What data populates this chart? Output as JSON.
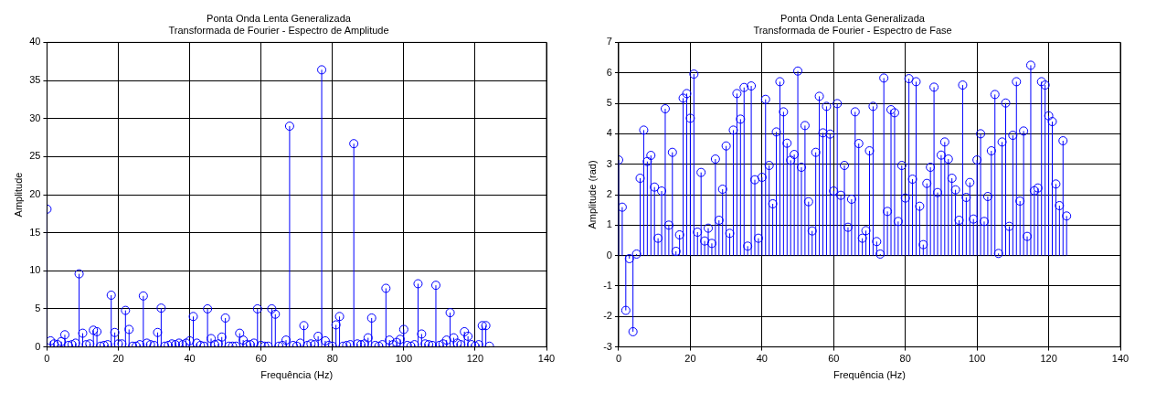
{
  "chart_data": [
    {
      "type": "lollipop",
      "title": "Ponta Onda Lenta Generalizada",
      "subtitle": "Transformada de Fourier - Espectro de Amplitude",
      "xlabel": "Frequência (Hz)",
      "ylabel": "Amplitude",
      "color": "#0000ff",
      "marker": "circle",
      "grid": true,
      "xlim": [
        0,
        140
      ],
      "xticks": [
        0,
        20,
        40,
        60,
        80,
        100,
        120,
        140
      ],
      "ylim": [
        0,
        40
      ],
      "yticks": [
        0,
        5,
        10,
        15,
        20,
        25,
        30,
        35,
        40
      ],
      "x": [
        0,
        1,
        2,
        3,
        4,
        5,
        6,
        7,
        8,
        9,
        10,
        11,
        12,
        13,
        14,
        15,
        16,
        17,
        18,
        19,
        20,
        21,
        22,
        23,
        24,
        25,
        26,
        27,
        28,
        29,
        30,
        31,
        32,
        33,
        34,
        35,
        36,
        37,
        38,
        39,
        40,
        41,
        42,
        43,
        44,
        45,
        46,
        47,
        48,
        49,
        50,
        51,
        52,
        53,
        54,
        55,
        56,
        57,
        58,
        59,
        60,
        61,
        62,
        63,
        64,
        65,
        66,
        67,
        68,
        69,
        70,
        71,
        72,
        73,
        74,
        75,
        76,
        77,
        78,
        79,
        80,
        81,
        82,
        83,
        84,
        85,
        86,
        87,
        88,
        89,
        90,
        91,
        92,
        93,
        94,
        95,
        96,
        97,
        98,
        99,
        100,
        101,
        102,
        103,
        104,
        105,
        106,
        107,
        108,
        109,
        110,
        111,
        112,
        113,
        114,
        115,
        116,
        117,
        118,
        119,
        120,
        121,
        122,
        123,
        124
      ],
      "values": [
        18.1,
        0.8,
        0.4,
        0.3,
        0.7,
        1.6,
        0.2,
        0.3,
        0.5,
        9.6,
        1.8,
        0.3,
        0.4,
        2.2,
        2.0,
        0.1,
        0.2,
        0.3,
        6.8,
        1.9,
        0.4,
        0.4,
        4.8,
        2.3,
        0.1,
        0.1,
        0.3,
        6.7,
        0.5,
        0.3,
        0.2,
        1.9,
        5.1,
        0.1,
        0.2,
        0.4,
        0.3,
        0.5,
        0.3,
        0.5,
        0.8,
        4.0,
        0.5,
        0.2,
        0.1,
        5.0,
        1.1,
        0.3,
        0.4,
        1.3,
        3.8,
        0.1,
        0.1,
        0.1,
        1.8,
        0.9,
        0.3,
        0.3,
        0.5,
        5.0,
        0.2,
        0.1,
        0.1,
        5.0,
        4.3,
        0.1,
        0.2,
        0.9,
        29.0,
        0.2,
        0.1,
        0.5,
        2.8,
        0.2,
        0.4,
        0.3,
        1.4,
        36.4,
        0.8,
        0.2,
        0.1,
        2.9,
        4.0,
        0.1,
        0.2,
        0.3,
        26.7,
        0.4,
        0.3,
        0.4,
        1.2,
        3.8,
        0.2,
        0.1,
        0.3,
        7.7,
        0.9,
        0.3,
        0.6,
        1.0,
        2.3,
        0.2,
        0.1,
        0.3,
        8.3,
        1.7,
        0.4,
        0.3,
        0.2,
        8.1,
        0.2,
        0.4,
        0.9,
        4.5,
        1.2,
        0.5,
        0.3,
        2.0,
        1.4,
        0.3,
        0.1,
        0.3,
        2.8,
        2.8,
        0.1
      ]
    },
    {
      "type": "lollipop",
      "title": "Ponta Onda Lenta Generalizada",
      "subtitle": "Transformada de Fourier - Espectro de Fase",
      "xlabel": "Frequência (Hz)",
      "ylabel": "Amplitude (rad)",
      "color": "#0000ff",
      "marker": "circle",
      "grid": true,
      "xlim": [
        0,
        140
      ],
      "xticks": [
        0,
        20,
        40,
        60,
        80,
        100,
        120,
        140
      ],
      "ylim": [
        -3,
        7
      ],
      "yticks": [
        -3,
        -2,
        -1,
        0,
        1,
        2,
        3,
        4,
        5,
        6,
        7
      ],
      "x": [
        0,
        1,
        2,
        3,
        4,
        5,
        6,
        7,
        8,
        9,
        10,
        11,
        12,
        13,
        14,
        15,
        16,
        17,
        18,
        19,
        20,
        21,
        22,
        23,
        24,
        25,
        26,
        27,
        28,
        29,
        30,
        31,
        32,
        33,
        34,
        35,
        36,
        37,
        38,
        39,
        40,
        41,
        42,
        43,
        44,
        45,
        46,
        47,
        48,
        49,
        50,
        51,
        52,
        53,
        54,
        55,
        56,
        57,
        58,
        59,
        60,
        61,
        62,
        63,
        64,
        65,
        66,
        67,
        68,
        69,
        70,
        71,
        72,
        73,
        74,
        75,
        76,
        77,
        78,
        79,
        80,
        81,
        82,
        83,
        84,
        85,
        86,
        87,
        88,
        89,
        90,
        91,
        92,
        93,
        94,
        95,
        96,
        97,
        98,
        99,
        100,
        101,
        102,
        103,
        104,
        105,
        106,
        107,
        108,
        109,
        110,
        111,
        112,
        113,
        114,
        115,
        116,
        117,
        118,
        119,
        120,
        121,
        122,
        123,
        124,
        125
      ],
      "values": [
        3.14,
        1.59,
        -1.8,
        -0.1,
        -2.5,
        0.05,
        2.54,
        4.12,
        3.09,
        3.29,
        2.25,
        0.57,
        2.12,
        4.82,
        1.0,
        3.39,
        0.14,
        0.68,
        5.17,
        5.32,
        4.51,
        5.96,
        0.77,
        2.73,
        0.48,
        0.9,
        0.4,
        3.17,
        1.16,
        2.18,
        3.6,
        0.73,
        4.12,
        5.32,
        4.48,
        5.52,
        0.31,
        5.57,
        2.49,
        0.57,
        2.57,
        5.13,
        2.96,
        1.7,
        4.06,
        5.71,
        4.72,
        3.69,
        3.13,
        3.32,
        6.06,
        2.9,
        4.27,
        1.77,
        0.81,
        3.39,
        5.23,
        4.03,
        4.9,
        3.99,
        2.12,
        4.99,
        1.98,
        2.96,
        0.93,
        1.85,
        4.72,
        3.68,
        0.57,
        0.82,
        3.44,
        4.9,
        0.46,
        0.05,
        5.83,
        1.45,
        4.79,
        4.69,
        1.12,
        2.96,
        1.89,
        5.81,
        2.51,
        5.71,
        1.62,
        0.36,
        2.37,
        2.9,
        5.53,
        2.07,
        3.3,
        3.73,
        3.17,
        2.54,
        2.16,
        1.16,
        5.6,
        1.91,
        2.4,
        1.2,
        3.14,
        4.0,
        1.12,
        1.94,
        3.44,
        5.29,
        0.07,
        3.73,
        5.01,
        0.96,
        3.95,
        5.71,
        1.79,
        4.09,
        0.63,
        6.25,
        2.13,
        2.22,
        5.71,
        5.6,
        4.59,
        4.4,
        2.35,
        1.64,
        3.77,
        1.3
      ]
    }
  ]
}
